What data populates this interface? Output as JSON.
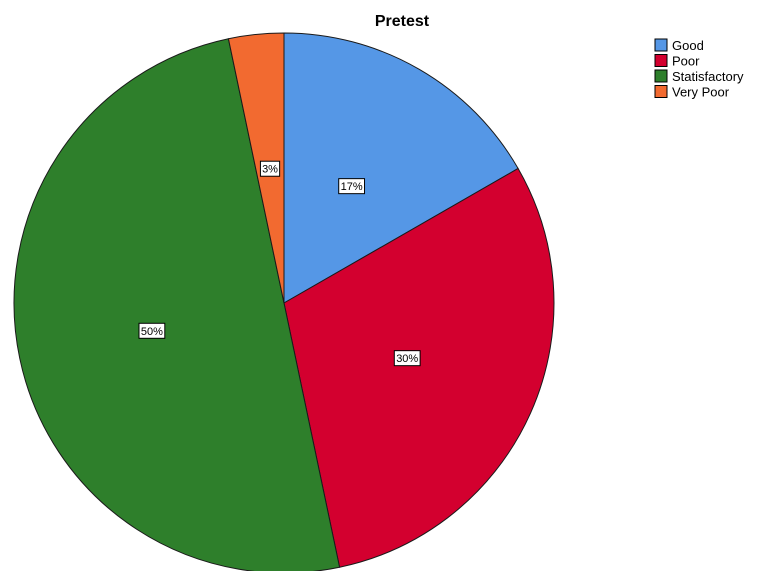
{
  "chart_data": {
    "type": "pie",
    "title": "Pretest",
    "categories": [
      "Good",
      "Poor",
      "Statisfactory",
      "Very Poor"
    ],
    "values": [
      16.7,
      30,
      50,
      3.3
    ],
    "data_labels": [
      "17%",
      "30%",
      "50%",
      "3%"
    ],
    "colors": [
      "#5597e6",
      "#d3002f",
      "#2e7f2b",
      "#f26a30"
    ],
    "legend": {
      "position": "top-right",
      "entries": [
        "Good",
        "Poor",
        "Statisfactory",
        "Very Poor"
      ]
    },
    "start_angle": "12 o'clock",
    "direction": "clockwise"
  }
}
